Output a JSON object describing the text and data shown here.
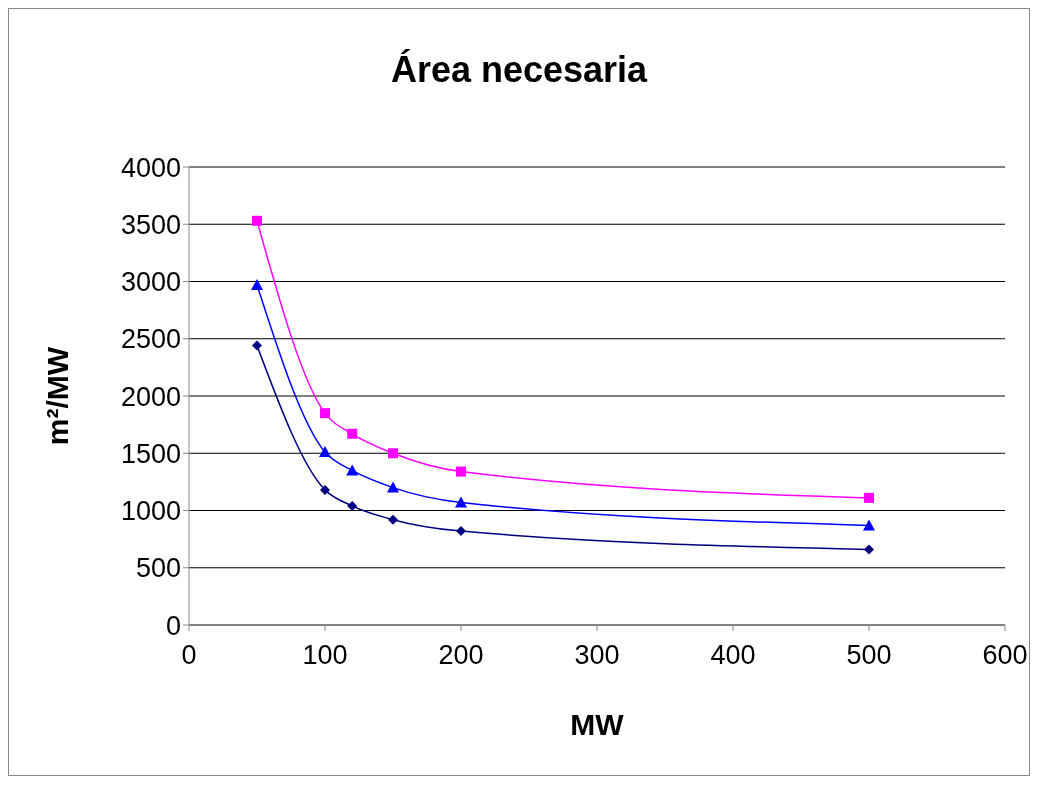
{
  "chart_data": {
    "type": "line",
    "title": "Área necesaria",
    "xlabel": "MW",
    "ylabel": "m²/MW",
    "x": [
      50,
      100,
      120,
      150,
      200,
      500
    ],
    "series": [
      {
        "color": "#ff00ff",
        "marker": "square",
        "values": [
          3530,
          1850,
          1670,
          1500,
          1340,
          1110
        ]
      },
      {
        "color": "#0000ff",
        "marker": "triangle",
        "values": [
          2970,
          1510,
          1350,
          1200,
          1070,
          870
        ]
      },
      {
        "color": "#000080",
        "marker": "diamond",
        "values": [
          2440,
          1180,
          1040,
          920,
          820,
          660
        ]
      }
    ],
    "xlim": [
      0,
      600
    ],
    "xticks": [
      0,
      100,
      200,
      300,
      400,
      500,
      600
    ],
    "ylim": [
      0,
      4000
    ],
    "yticks": [
      0,
      500,
      1000,
      1500,
      2000,
      2500,
      3000,
      3500,
      4000
    ],
    "grid": "y"
  }
}
